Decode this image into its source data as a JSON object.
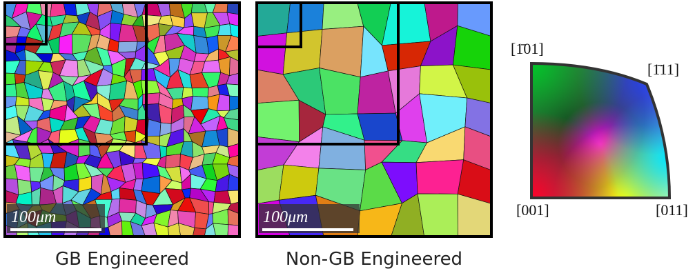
{
  "panels": [
    {
      "scale_bar": "100μm",
      "caption": "GB Engineered"
    },
    {
      "scale_bar": "100μm",
      "caption": "Non-GB Engineered"
    }
  ],
  "color_key": {
    "top_left": "[1̄01]",
    "top_right": "[1̄11]",
    "bottom_left": "[001]",
    "bottom_right": "[011]"
  }
}
